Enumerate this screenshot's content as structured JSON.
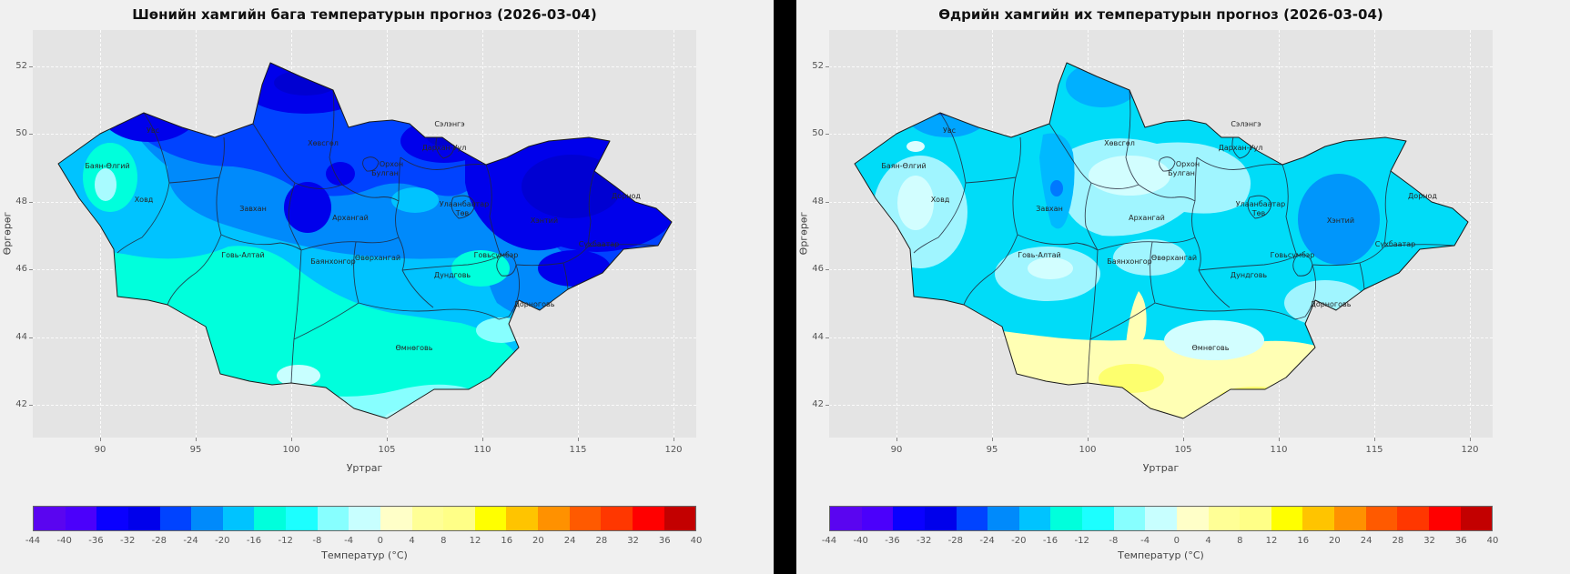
{
  "panels": [
    {
      "title": "Шөнийн хамгийн бага температурын прогноз (2026-03-04)"
    },
    {
      "title": "Өдрийн хамгийн их температурын прогноз (2026-03-04)"
    }
  ],
  "axes": {
    "xlabel": "Уртраг",
    "ylabel": "Өргөрөг",
    "x_ticks": [
      90,
      95,
      100,
      105,
      110,
      115,
      120
    ],
    "y_ticks": [
      52,
      50,
      48,
      46,
      44,
      42
    ]
  },
  "colorbar": {
    "label": "Температур (°C)",
    "ticks": [
      -44,
      -40,
      -36,
      -32,
      -28,
      -24,
      -20,
      -16,
      -12,
      -8,
      -4,
      0,
      4,
      8,
      12,
      16,
      20,
      24,
      28,
      32,
      36,
      40
    ],
    "colors": [
      "#5a05f0",
      "#4b00fb",
      "#0a00ff",
      "#0000eb",
      "#0043ff",
      "#008afb",
      "#00c3ff",
      "#00ffdc",
      "#1cffff",
      "#87ffff",
      "#c8ffff",
      "#ffffc8",
      "#ffff96",
      "#ffff87",
      "#ffff00",
      "#ffc400",
      "#ff9100",
      "#ff5a00",
      "#ff3700",
      "#ff0000",
      "#c30000"
    ]
  },
  "regions": [
    "Увс",
    "Баян-Өлгий",
    "Ховд",
    "Завхан",
    "Хөвсгөл",
    "Архангай",
    "Булган",
    "Орхон",
    "Сэлэнгэ",
    "Дархан-Уул",
    "Улаанбаатар",
    "Төв",
    "Хэнтий",
    "Дорнод",
    "Сүхбаатар",
    "Говьсүмбэр",
    "Дундговь",
    "Дорноговь",
    "Өмнөговь",
    "Өвөрхангай",
    "Баянхонгор",
    "Говь-Алтай"
  ],
  "map_summary": {
    "left_map_bands_c": "mostly -36..-20 in north and east, -16..-8 in south, -8..-4 in far south Gobi",
    "right_map_bands_c": "mostly -12..-4 over country, -24..-16 patches (Uvs, Zavkhan, Khentii), 0..8 in south Gobi"
  }
}
